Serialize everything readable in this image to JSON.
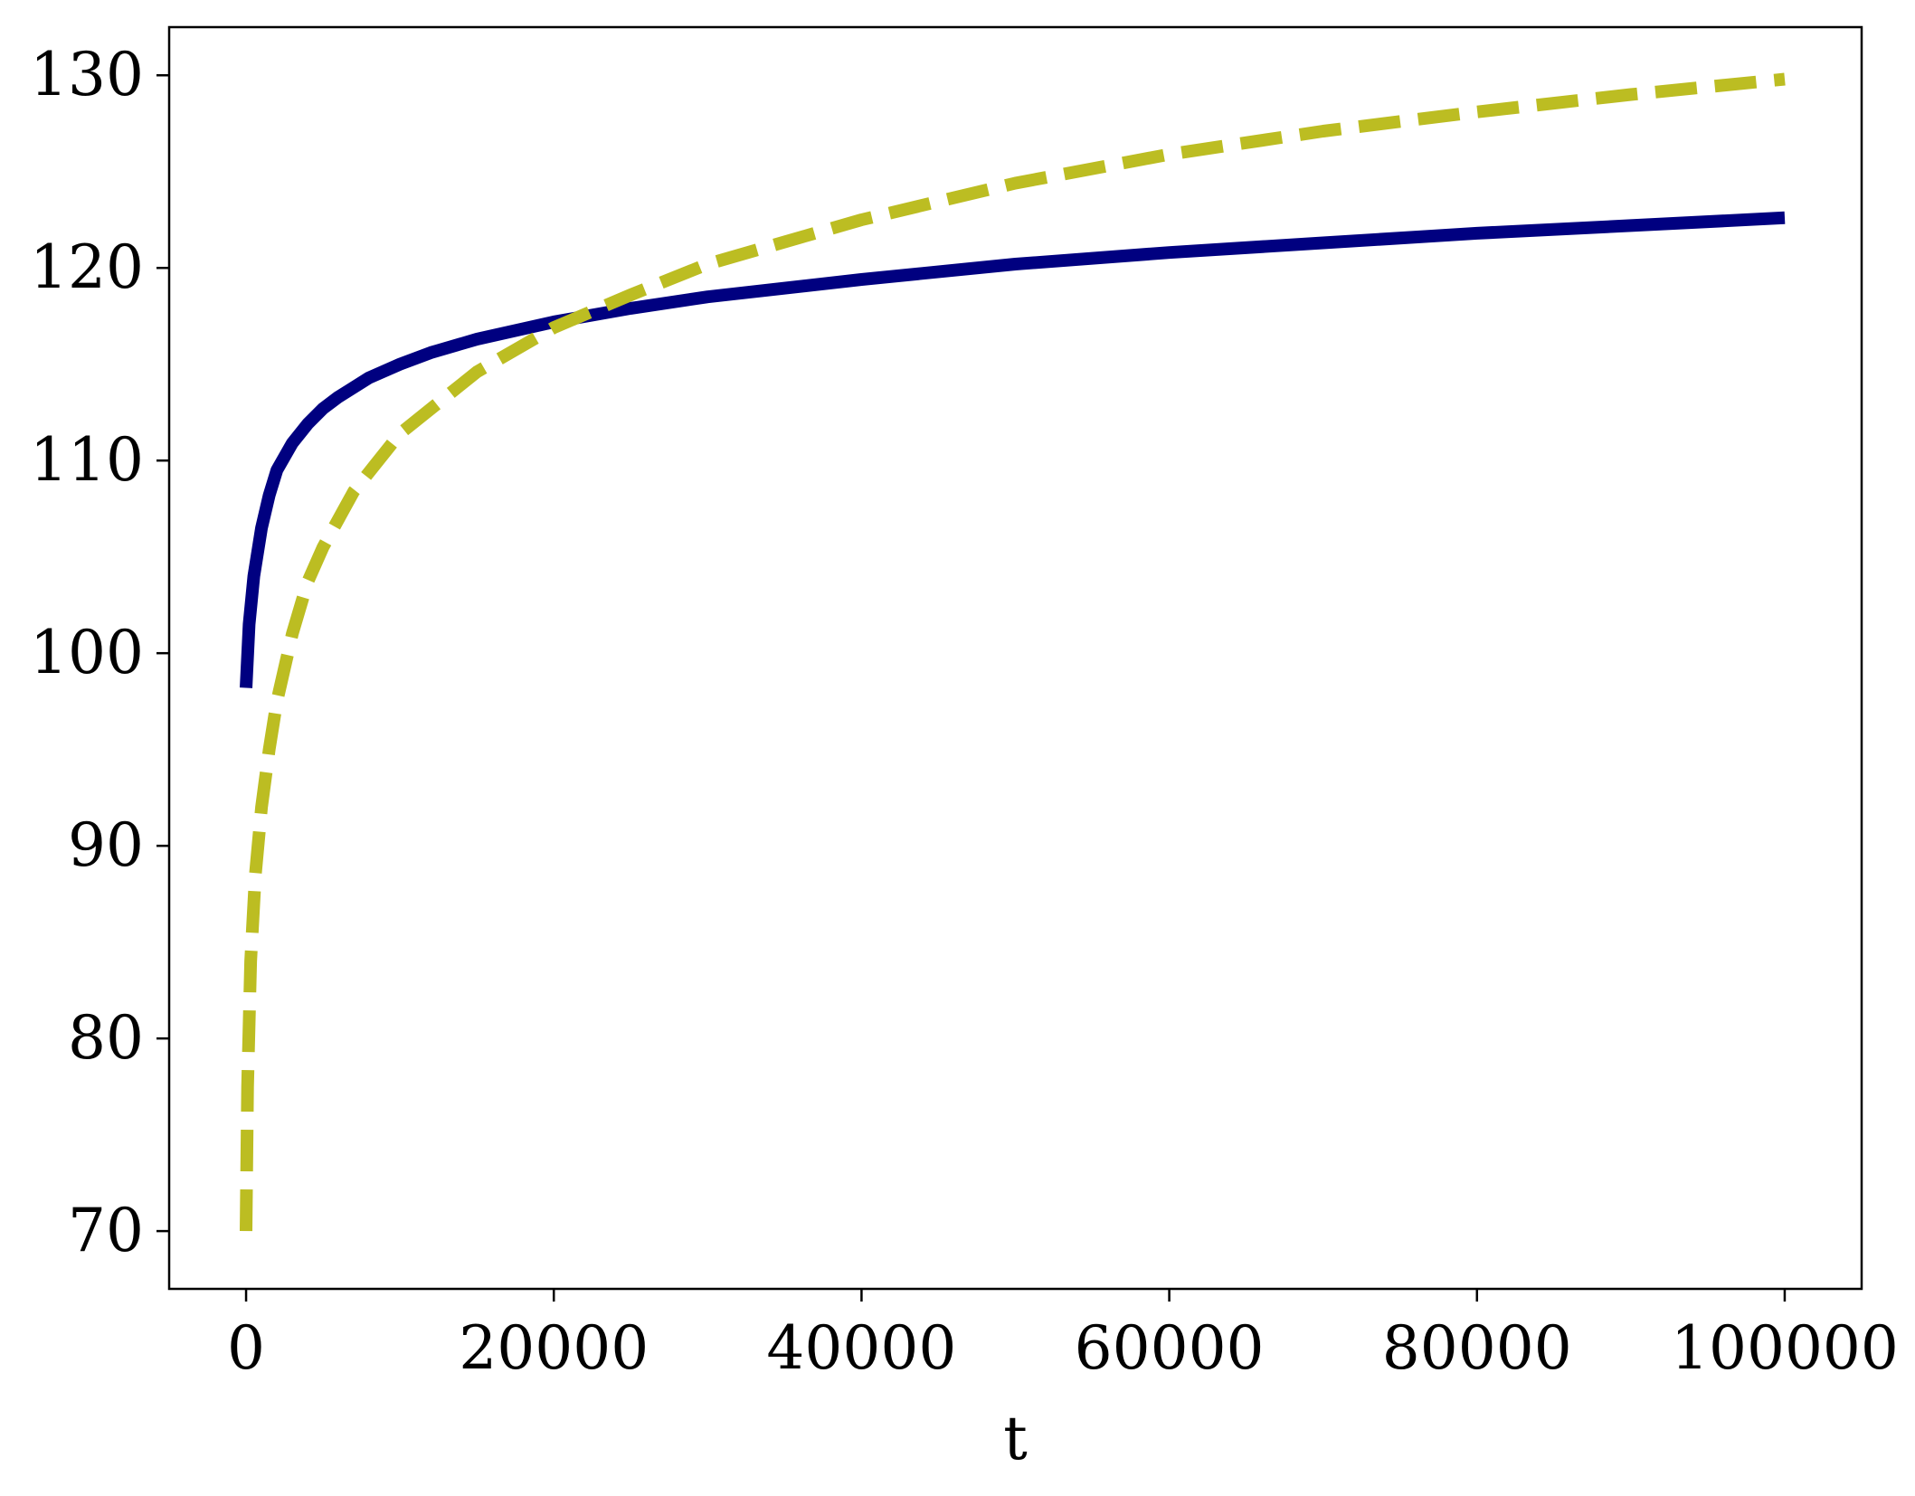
{
  "chart_data": {
    "type": "line",
    "xlabel": "t",
    "ylabel": "",
    "title": "",
    "xlim": [
      -5000,
      105000
    ],
    "ylim": [
      67,
      132.5
    ],
    "xticks": [
      0,
      20000,
      40000,
      60000,
      80000,
      100000
    ],
    "xtick_labels": [
      "0",
      "20000",
      "40000",
      "60000",
      "80000",
      "100000"
    ],
    "yticks": [
      70,
      80,
      90,
      100,
      110,
      120,
      130
    ],
    "ytick_labels": [
      "70",
      "80",
      "90",
      "100",
      "110",
      "120",
      "130"
    ],
    "grid": false,
    "legend": "none",
    "series": [
      {
        "style": "solid",
        "color": "#000080",
        "x": [
          0,
          200,
          500,
          1000,
          1500,
          2000,
          3000,
          4000,
          5000,
          6000,
          8000,
          10000,
          12000,
          15000,
          20000,
          25000,
          30000,
          40000,
          50000,
          60000,
          70000,
          80000,
          90000,
          100000
        ],
        "y": [
          98.2,
          101.5,
          104.0,
          106.5,
          108.2,
          109.5,
          110.9,
          111.9,
          112.7,
          113.3,
          114.3,
          115.0,
          115.6,
          116.3,
          117.2,
          117.9,
          118.5,
          119.4,
          120.2,
          120.8,
          121.3,
          121.8,
          122.2,
          122.6
        ]
      },
      {
        "style": "dashed",
        "color": "#bcbd22",
        "x": [
          0,
          100,
          300,
          600,
          1000,
          1500,
          2000,
          3000,
          4000,
          5000,
          7000,
          10000,
          15000,
          20000,
          25000,
          30000,
          40000,
          50000,
          60000,
          70000,
          80000,
          90000,
          100000
        ],
        "y": [
          70.0,
          77.5,
          84.0,
          88.5,
          92.0,
          95.0,
          97.5,
          101.0,
          103.7,
          105.5,
          108.4,
          111.4,
          114.6,
          116.9,
          118.6,
          120.2,
          122.5,
          124.4,
          125.9,
          127.1,
          128.1,
          129.0,
          129.8
        ]
      }
    ]
  }
}
